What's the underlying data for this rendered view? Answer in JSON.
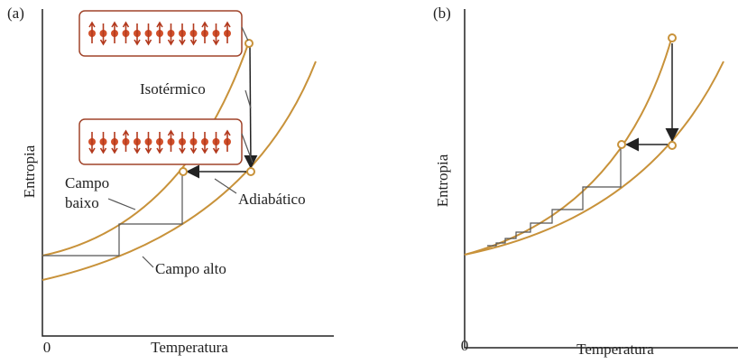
{
  "panels": [
    {
      "label": "(a)",
      "y_axis_label": "Entropia",
      "x_axis_label": "Temperatura",
      "origin_label": "0",
      "isothermal": "Isotérmico",
      "adiabatic": "Adiabático",
      "low_field": [
        "Campo",
        "baixo"
      ],
      "high_field": "Campo alto"
    },
    {
      "label": "(b)",
      "y_axis_label": "Entropia",
      "x_axis_label": "Temperatura",
      "origin_label": "0"
    }
  ]
}
